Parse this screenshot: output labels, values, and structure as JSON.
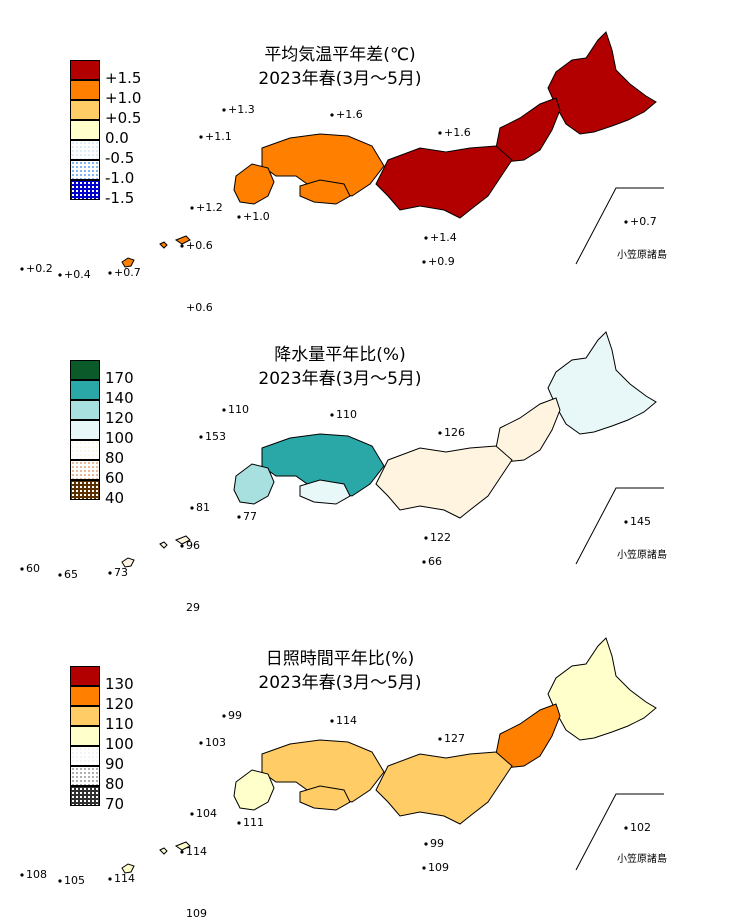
{
  "panels": [
    {
      "title_line1": "平均気温平年差(℃)",
      "title_line2": "2023年春(3月～5月)",
      "legend": [
        {
          "label": "+1.5",
          "color": "#b20000",
          "pattern": "solid"
        },
        {
          "label": "+1.0",
          "color": "#ff8000",
          "pattern": "solid"
        },
        {
          "label": "+0.5",
          "color": "#ffcc66",
          "pattern": "solid"
        },
        {
          "label": "0.0",
          "color": "#ffffcc",
          "pattern": "solid"
        },
        {
          "label": "-0.5",
          "color": "#cfeaf6",
          "pattern": "dots-light"
        },
        {
          "label": "-1.0",
          "color": "#7fb8f2",
          "pattern": "dots"
        },
        {
          "label": "-1.5",
          "color": "#0000cc",
          "pattern": "dots-dense"
        }
      ],
      "map_colors": {
        "north": "#b20000",
        "east": "#b20000",
        "west": "#ff8000",
        "kyushu": "#ff8000",
        "hokkaido": "#b20000",
        "shikoku": "#ff8000",
        "islands": "#ff8000"
      },
      "station_labels": [
        "+1.3",
        "+1.6",
        "+1.1",
        "+1.6",
        "+1.2",
        "+1.0",
        "+1.4",
        "+0.9",
        "+0.6",
        "+0.2",
        "+0.4",
        "+0.7",
        "+0.6",
        "+0.7"
      ],
      "ogasawara": "小笠原諸島"
    },
    {
      "title_line1": "降水量平年比(%)",
      "title_line2": "2023年春(3月～5月)",
      "legend": [
        {
          "label": "170",
          "color": "#0a5a2a",
          "pattern": "solid"
        },
        {
          "label": "140",
          "color": "#2aa8a8",
          "pattern": "solid"
        },
        {
          "label": "120",
          "color": "#a8e0e0",
          "pattern": "solid"
        },
        {
          "label": "100",
          "color": "#e8f8f8",
          "pattern": "solid"
        },
        {
          "label": "80",
          "color": "#fff4e0",
          "pattern": "dots-light"
        },
        {
          "label": "60",
          "color": "#e8b898",
          "pattern": "dots"
        },
        {
          "label": "40",
          "color": "#5a3000",
          "pattern": "dots-dense"
        }
      ],
      "map_colors": {
        "north": "#fff4e0",
        "east": "#fff4e0",
        "west": "#2aa8a8",
        "kyushu": "#a8e0e0",
        "hokkaido": "#e8f8f8",
        "shikoku": "#e8f8f8",
        "islands": "#fff4e0"
      },
      "station_labels": [
        "110",
        "110",
        "153",
        "126",
        "81",
        "77",
        "122",
        "66",
        "96",
        "60",
        "65",
        "73",
        "29",
        "145"
      ],
      "ogasawara": "小笠原諸島"
    },
    {
      "title_line1": "日照時間平年比(%)",
      "title_line2": "2023年春(3月～5月)",
      "legend": [
        {
          "label": "130",
          "color": "#b20000",
          "pattern": "solid"
        },
        {
          "label": "120",
          "color": "#ff8000",
          "pattern": "solid"
        },
        {
          "label": "110",
          "color": "#ffcc66",
          "pattern": "solid"
        },
        {
          "label": "100",
          "color": "#ffffcc",
          "pattern": "solid"
        },
        {
          "label": "90",
          "color": "#f0f0f0",
          "pattern": "dots-light"
        },
        {
          "label": "80",
          "color": "#b0b0b0",
          "pattern": "dots"
        },
        {
          "label": "70",
          "color": "#303030",
          "pattern": "dots-dense"
        }
      ],
      "map_colors": {
        "north": "#ff8000",
        "east": "#ffcc66",
        "west": "#ffcc66",
        "kyushu": "#ffffcc",
        "hokkaido": "#ffffcc",
        "shikoku": "#ffcc66",
        "islands": "#ffffcc"
      },
      "station_labels": [
        "99",
        "114",
        "103",
        "127",
        "104",
        "111",
        "99",
        "109",
        "114",
        "108",
        "105",
        "114",
        "109",
        "102"
      ],
      "ogasawara": "小笠原諸島"
    }
  ]
}
